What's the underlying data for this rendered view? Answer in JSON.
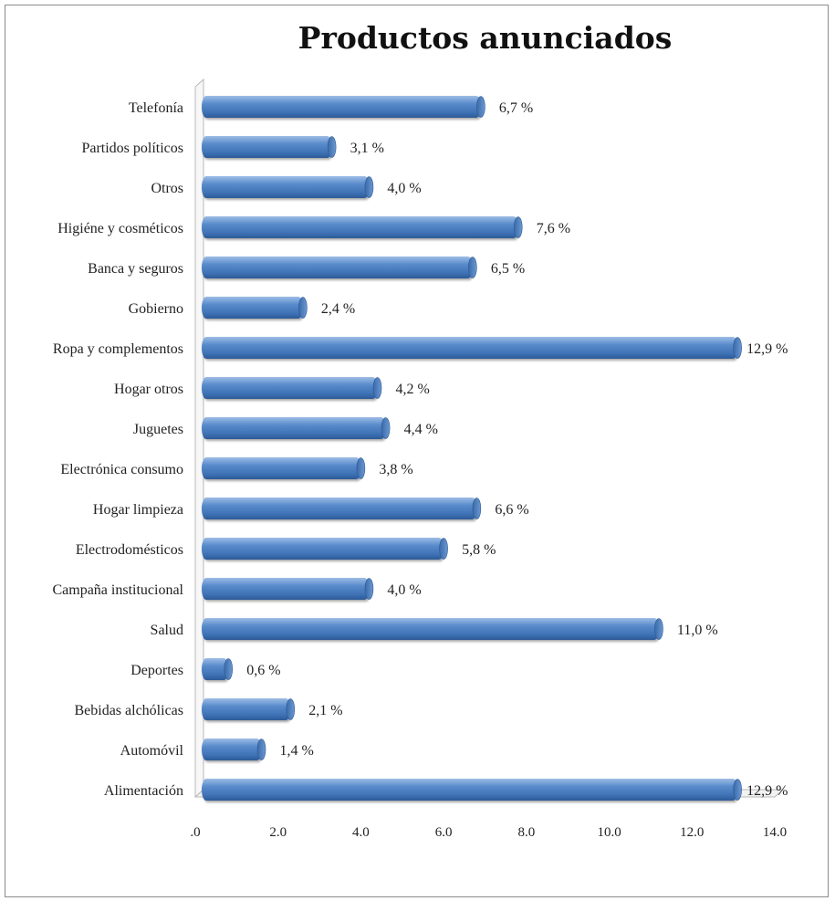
{
  "chart_data": {
    "type": "bar",
    "orientation": "horizontal",
    "title": "Productos anunciados",
    "xlabel": "",
    "ylabel": "",
    "categories": [
      "Telefonía",
      "Partidos políticos",
      "Otros",
      "Higiéne y cosméticos",
      "Banca y seguros",
      "Gobierno",
      "Ropa y complementos",
      "Hogar otros",
      "Juguetes",
      "Electrónica consumo",
      "Hogar limpieza",
      "Electrodomésticos",
      "Campaña institucional",
      "Salud",
      "Deportes",
      "Bebidas alchólicas",
      "Automóvil",
      "Alimentación"
    ],
    "values": [
      6.7,
      3.1,
      4.0,
      7.6,
      6.5,
      2.4,
      12.9,
      4.2,
      4.4,
      3.8,
      6.6,
      5.8,
      4.0,
      11.0,
      0.6,
      2.1,
      1.4,
      12.9
    ],
    "value_labels": [
      "6,7 %",
      "3,1 %",
      "4,0 %",
      "7,6 %",
      "6,5 %",
      "2,4 %",
      "12,9 %",
      "4,2 %",
      "4,4 %",
      "3,8 %",
      "6,6 %",
      "5,8 %",
      "4,0 %",
      "11,0 %",
      "0,6 %",
      "2,1 %",
      "1,4 %",
      "12,9 %"
    ],
    "xlim": [
      0,
      14
    ],
    "xticks": [
      0,
      2,
      4,
      6,
      8,
      10,
      12,
      14
    ],
    "xtick_labels": [
      ".0",
      "2.0",
      "4.0",
      "6.0",
      "8.0",
      "10.0",
      "12.0",
      "14.0"
    ],
    "grid": false,
    "legend": "none",
    "bar_color": "#4f81bd"
  }
}
